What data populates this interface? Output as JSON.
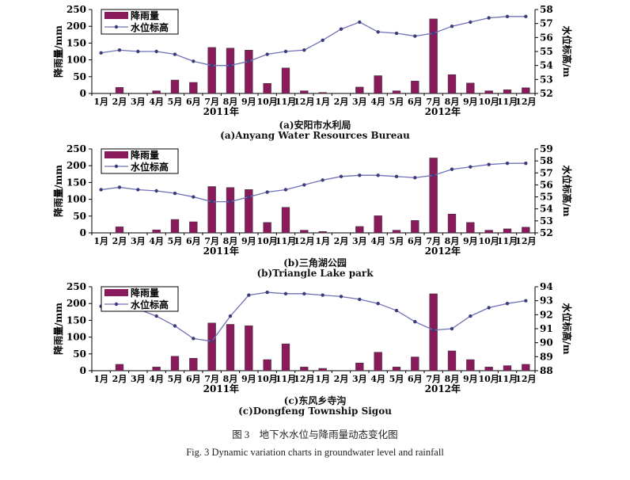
{
  "colors": {
    "bar": "#8a1a5c",
    "line": "#7070b8",
    "marker": "#3c3c7a"
  },
  "months": [
    "1月",
    "2月",
    "3月",
    "4月",
    "5月",
    "6月",
    "7月",
    "8月",
    "9月",
    "10月",
    "11月",
    "12月",
    "1月",
    "2月",
    "3月",
    "4月",
    "5月",
    "6月",
    "7月",
    "8月",
    "9月",
    "10月",
    "11月",
    "12月"
  ],
  "years": [
    "2011年",
    "2012年"
  ],
  "figure_caption_cn": "图 3　地下水水位与降雨量动态变化图",
  "figure_caption_en": "Fig. 3 Dynamic variation charts in groundwater level and rainfall",
  "chart_data": [
    {
      "type": "bar+line",
      "title_cn": "(a)安阳市水利局",
      "title_en": "(a)Anyang Water Resources Bureau",
      "ylabel": "降雨量/mm",
      "y2label": "水位标高/m",
      "ylim": [
        0,
        250
      ],
      "yticks": [
        0,
        50,
        100,
        150,
        200,
        250
      ],
      "y2lim": [
        52,
        58
      ],
      "y2ticks": [
        52,
        53,
        54,
        55,
        56,
        57,
        58
      ],
      "legend": [
        "降雨量",
        "水位标高"
      ],
      "legend_position": "top-left",
      "series": [
        {
          "name": "降雨量",
          "type": "bar",
          "values": [
            0,
            18,
            0,
            8,
            40,
            33,
            137,
            135,
            129,
            30,
            76,
            8,
            3,
            0,
            19,
            53,
            8,
            37,
            222,
            56,
            31,
            8,
            11,
            17
          ]
        },
        {
          "name": "水位标高",
          "type": "line",
          "values": [
            54.9,
            55.1,
            55.0,
            55.0,
            54.8,
            54.3,
            54.0,
            54.0,
            54.3,
            54.8,
            55.0,
            55.1,
            55.8,
            56.6,
            57.1,
            56.4,
            56.3,
            56.1,
            56.3,
            56.8,
            57.1,
            57.4,
            57.5,
            57.5
          ]
        }
      ]
    },
    {
      "type": "bar+line",
      "title_cn": "(b)三角湖公园",
      "title_en": "(b)Triangle Lake park",
      "ylabel": "降雨量/mm",
      "y2label": "水位标高/m",
      "ylim": [
        0,
        250
      ],
      "yticks": [
        0,
        50,
        100,
        150,
        200,
        250
      ],
      "y2lim": [
        52,
        59
      ],
      "y2ticks": [
        52,
        53,
        54,
        55,
        56,
        57,
        58,
        59
      ],
      "legend": [
        "降雨量",
        "水位标高"
      ],
      "legend_position": "top-left",
      "series": [
        {
          "name": "降雨量",
          "type": "bar",
          "values": [
            0,
            18,
            0,
            9,
            40,
            33,
            138,
            135,
            129,
            31,
            76,
            8,
            4,
            0,
            19,
            51,
            8,
            37,
            223,
            56,
            31,
            8,
            12,
            17
          ]
        },
        {
          "name": "水位标高",
          "type": "line",
          "values": [
            55.6,
            55.8,
            55.6,
            55.5,
            55.3,
            55.0,
            54.6,
            54.6,
            55.0,
            55.4,
            55.6,
            56.0,
            56.4,
            56.7,
            56.8,
            56.8,
            56.7,
            56.6,
            56.8,
            57.3,
            57.5,
            57.7,
            57.8,
            57.8
          ]
        }
      ]
    },
    {
      "type": "bar+line",
      "title_cn": "(c)东风乡寺沟",
      "title_en": "(c)Dongfeng Township Sigou",
      "ylabel": "降雨量/mm",
      "y2label": "水位标高/m",
      "ylim": [
        0,
        250
      ],
      "yticks": [
        0,
        50,
        100,
        150,
        200,
        250
      ],
      "y2lim": [
        88,
        94
      ],
      "y2ticks": [
        88,
        89,
        90,
        91,
        92,
        93,
        94
      ],
      "legend": [
        "降雨量",
        "水位标高"
      ],
      "legend_position": "top-left",
      "series": [
        {
          "name": "降雨量",
          "type": "bar",
          "values": [
            0,
            19,
            0,
            11,
            43,
            37,
            142,
            138,
            134,
            33,
            80,
            11,
            7,
            0,
            23,
            55,
            11,
            41,
            229,
            59,
            33,
            11,
            15,
            19
          ]
        },
        {
          "name": "水位标高",
          "type": "line",
          "values": [
            92.6,
            92.6,
            92.4,
            91.9,
            91.2,
            90.3,
            90.1,
            91.9,
            93.4,
            93.6,
            93.5,
            93.5,
            93.4,
            93.3,
            93.1,
            92.8,
            92.3,
            91.5,
            90.9,
            91.0,
            91.9,
            92.5,
            92.8,
            93.0
          ]
        }
      ]
    }
  ]
}
